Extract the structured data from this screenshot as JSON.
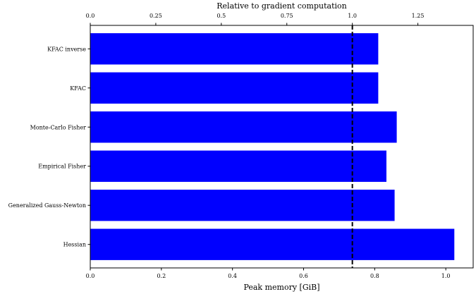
{
  "chart_data": {
    "type": "bar",
    "orientation": "horizontal",
    "categories": [
      "KFAC inverse",
      "KFAC",
      "Monte-Carlo Fisher",
      "Empirical Fisher",
      "Generalized Gauss-Newton",
      "Hessian"
    ],
    "series": [
      {
        "values": [
          0.81,
          0.81,
          0.862,
          0.833,
          0.856,
          1.024
        ],
        "color": "#0000ff"
      }
    ],
    "xlabel": "Peak memory [GiB]",
    "xlim": [
      0,
      1.077
    ],
    "xticks": [
      0.0,
      0.2,
      0.4,
      0.6,
      0.8,
      1.0
    ],
    "xtick_labels": [
      "0.0",
      "0.2",
      "0.4",
      "0.6",
      "0.8",
      "1.0"
    ],
    "top_axis": {
      "label": "Relative to gradient computation",
      "xlim": [
        0,
        1.461
      ],
      "xticks": [
        0,
        0.25,
        0.5,
        0.75,
        1.0,
        1.25
      ],
      "xtick_labels": [
        "0.0",
        "0.25",
        "0.5",
        "0.75",
        "1.0",
        "1.25"
      ]
    },
    "reference_line": {
      "style": "dashed",
      "color": "#000000",
      "top_axis_value": 1.0,
      "bottom_axis_value": 0.737
    },
    "grid": false,
    "legend": false
  }
}
